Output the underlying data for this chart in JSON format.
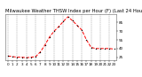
{
  "title": "Milwaukee Weather THSW Index per Hour (F) (Last 24 Hours)",
  "hours": [
    0,
    1,
    2,
    3,
    4,
    5,
    6,
    7,
    8,
    9,
    10,
    11,
    12,
    13,
    14,
    15,
    16,
    17,
    18,
    19,
    20,
    21,
    22,
    23
  ],
  "values": [
    27,
    26,
    25,
    25,
    24,
    25,
    26,
    34,
    46,
    60,
    70,
    78,
    87,
    95,
    88,
    80,
    72,
    55,
    42,
    40,
    40,
    40,
    40,
    39
  ],
  "line_color": "#ff0000",
  "marker_color": "#000000",
  "bg_color": "#ffffff",
  "grid_color": "#888888",
  "ylim": [
    20,
    100
  ],
  "ytick_values": [
    25,
    40,
    55,
    70,
    85
  ],
  "ytick_labels": [
    "25",
    "40",
    "55",
    "70",
    "85"
  ],
  "title_color": "#000000",
  "title_fontsize": 3.8,
  "tick_fontsize": 3.0,
  "linewidth": 0.7,
  "markersize": 1.4
}
